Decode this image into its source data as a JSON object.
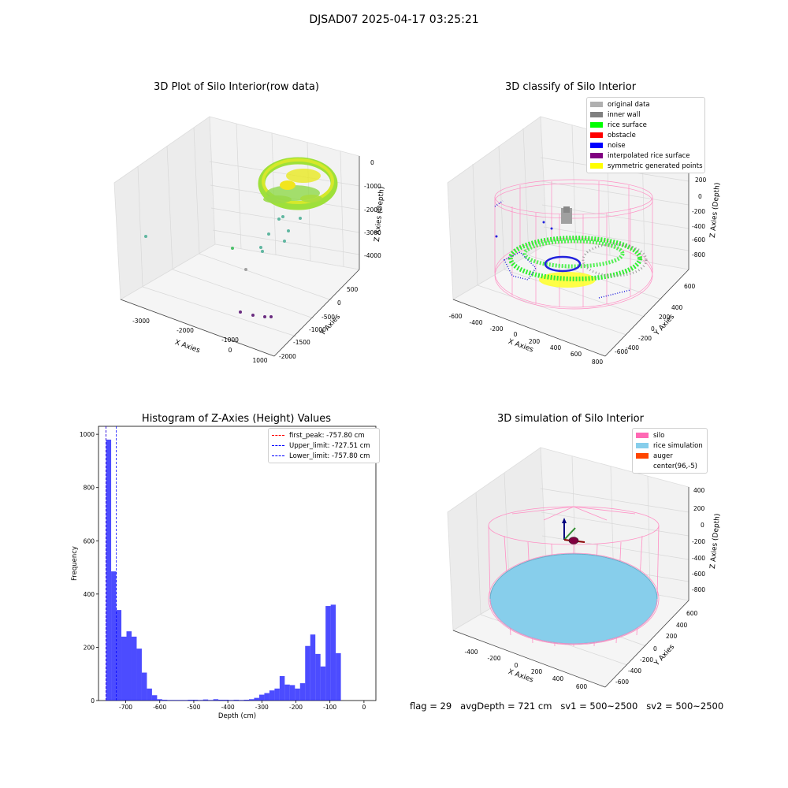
{
  "figure_title": "DJSAD07 2025-04-17 03:25:21",
  "panels": {
    "raw": {
      "title": "3D Plot of Silo Interior(row data)",
      "xlabel": "X Axies",
      "ylabel": "Y Axies",
      "zlabel": "Z Axies (Depth)",
      "x_ticks": [
        "-3000",
        "-2000",
        "-1000",
        "0",
        "1000"
      ],
      "y_ticks": [
        "500",
        "0",
        "-500",
        "-1000",
        "-1500",
        "-2000"
      ],
      "z_ticks": [
        "0",
        "-1000",
        "-2000",
        "-3000",
        "-4000"
      ]
    },
    "classify": {
      "title": "3D classify of Silo Interior",
      "xlabel": "X Axies",
      "ylabel": "Y Axies",
      "zlabel": "Z Axies (Depth)",
      "x_ticks": [
        "-600",
        "-400",
        "-200",
        "0",
        "200",
        "400",
        "600",
        "800"
      ],
      "y_ticks": [
        "600",
        "400",
        "200",
        "0",
        "-200",
        "-400",
        "-600"
      ],
      "z_ticks": [
        "200",
        "0",
        "-200",
        "-400",
        "-600",
        "-800"
      ],
      "legend": [
        {
          "label": "original data",
          "color": "#b0b0b0"
        },
        {
          "label": "inner wall",
          "color": "#808080"
        },
        {
          "label": "rice surface",
          "color": "#00ff00"
        },
        {
          "label": "obstacle",
          "color": "#ff0000"
        },
        {
          "label": "noise",
          "color": "#0000ff"
        },
        {
          "label": "interpolated rice surface",
          "color": "#800080"
        },
        {
          "label": "symmetric generated points",
          "color": "#ffff00"
        }
      ]
    },
    "simulation": {
      "title": "3D simulation of Silo Interior",
      "xlabel": "X Axies",
      "ylabel": "Y Axies",
      "zlabel": "Z Axies (Depth)",
      "x_ticks": [
        "-400",
        "-200",
        "0",
        "200",
        "400",
        "600"
      ],
      "y_ticks": [
        "600",
        "400",
        "200",
        "0",
        "-200",
        "-400",
        "-600"
      ],
      "z_ticks": [
        "400",
        "200",
        "0",
        "-200",
        "-400",
        "-600",
        "-800"
      ],
      "legend": [
        {
          "label": "silo",
          "color": "#ff69b4"
        },
        {
          "label": "rice simulation",
          "color": "#87ceeb"
        },
        {
          "label": "auger",
          "color": "#ff4500"
        },
        {
          "label": "center(96,-5)",
          "color": "#ffffff"
        }
      ]
    }
  },
  "footer": {
    "flag": "flag = 29",
    "avg": "avgDepth = 721 cm",
    "sv1": "sv1 = 500~2500",
    "sv2": "sv2 = 500~2500"
  },
  "chart_data": {
    "type": "bar",
    "title": "Histogram of Z-Axies (Height) Values",
    "xlabel": "Depth (cm)",
    "ylabel": "Frequency",
    "xlim": [
      -780,
      35
    ],
    "ylim": [
      0,
      1030
    ],
    "x_ticks": [
      -700,
      -600,
      -500,
      -400,
      -300,
      -200,
      -100,
      0
    ],
    "y_ticks": [
      0,
      200,
      400,
      600,
      800,
      1000
    ],
    "bar_color": "#0000ff",
    "bin_width": 15,
    "bin_start": -757.8,
    "values": [
      980,
      485,
      340,
      240,
      260,
      240,
      195,
      105,
      45,
      20,
      5,
      3,
      2,
      2,
      2,
      2,
      3,
      3,
      2,
      4,
      2,
      5,
      3,
      3,
      2,
      3,
      2,
      3,
      5,
      10,
      22,
      28,
      38,
      45,
      92,
      60,
      58,
      45,
      65,
      205,
      248,
      175,
      128,
      355,
      360,
      178
    ],
    "vlines": [
      {
        "label": "first_peak: -757.80 cm",
        "x": -757.8,
        "color": "#ff0000"
      },
      {
        "label": "Upper_limit: -727.51 cm",
        "x": -727.51,
        "color": "#0000ff"
      },
      {
        "label": "Lower_limit: -757.80 cm",
        "x": -757.8,
        "color": "#0000ff"
      }
    ],
    "legend_position": "top-right"
  }
}
